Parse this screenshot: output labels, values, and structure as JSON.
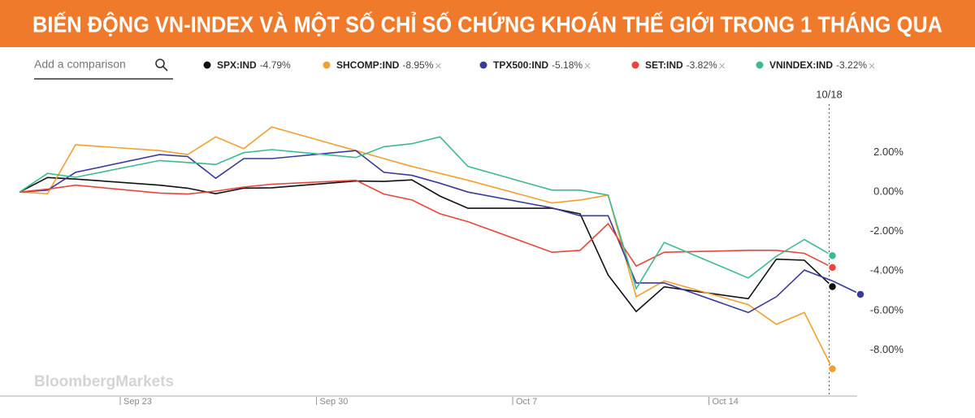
{
  "header": {
    "title": "BIẾN ĐỘNG VN-INDEX VÀ MỘT SỐ CHỈ SỐ CHỨNG KHOÁN THẾ GIỚI TRONG 1 THÁNG QUA"
  },
  "comparison_placeholder": "Add a comparison",
  "watermark": "BloombergMarkets",
  "chart_data": {
    "type": "line",
    "x": [
      "Sep 19",
      "Sep 20",
      "Sep 21",
      "Sep 24",
      "Sep 25",
      "Sep 26",
      "Sep 27",
      "Sep 28",
      "Oct 1",
      "Oct 2",
      "Oct 3",
      "Oct 4",
      "Oct 5",
      "Oct 8",
      "Oct 9",
      "Oct 10",
      "Oct 11",
      "Oct 12",
      "Oct 15",
      "Oct 16",
      "Oct 17",
      "Oct 18",
      "Oct 19"
    ],
    "xlim": [
      "Sep 19",
      "Oct 19"
    ],
    "xticks": [
      "Sep 23",
      "Sep 30",
      "Oct 7",
      "Oct 14"
    ],
    "ylim": [
      -10.25,
      5.2
    ],
    "yticks": [
      {
        "value": 2,
        "label": "2.00%"
      },
      {
        "value": 0,
        "label": "0.00%"
      },
      {
        "value": -2,
        "label": "-2.00%"
      },
      {
        "value": -4,
        "label": "-4.00%"
      },
      {
        "value": -6,
        "label": "-6.00%"
      },
      {
        "value": -8,
        "label": "-8.00%"
      }
    ],
    "grid": false,
    "cursor_label": "10/18",
    "series": [
      {
        "name": "SPX:IND",
        "change_label": "-4.79%",
        "color": "#111111",
        "removable": false,
        "values": [
          0,
          0.74,
          0.66,
          0.35,
          0.2,
          -0.08,
          0.2,
          0.22,
          0.56,
          0.54,
          0.62,
          -0.2,
          -0.82,
          -0.82,
          -1.1,
          -4.2,
          -6.05,
          -4.8,
          -5.4,
          -3.4,
          -3.45,
          -4.79,
          null
        ]
      },
      {
        "name": "SHCOMP:IND",
        "change_label": "-8.95%",
        "color": "#f0a030",
        "removable": true,
        "values": [
          0,
          -0.08,
          2.4,
          2.1,
          1.9,
          2.8,
          2.2,
          3.3,
          2.1,
          1.7,
          1.3,
          0.95,
          0.6,
          -0.55,
          -0.4,
          -0.15,
          -5.3,
          -4.5,
          -5.7,
          -6.7,
          -6.1,
          -8.95,
          null
        ]
      },
      {
        "name": "TPX500:IND",
        "change_label": "-5.18%",
        "color": "#3a3a9a",
        "removable": true,
        "values": [
          0,
          0.1,
          1.0,
          1.9,
          1.8,
          0.7,
          1.7,
          1.7,
          2.1,
          1.0,
          0.85,
          0.45,
          0.0,
          -0.8,
          -1.2,
          -1.2,
          -4.6,
          -4.6,
          -6.1,
          -5.3,
          -3.95,
          -4.5,
          -5.18
        ]
      },
      {
        "name": "SET:IND",
        "change_label": "-3.82%",
        "color": "#e8453c",
        "removable": true,
        "values": [
          0,
          0.15,
          0.35,
          -0.05,
          -0.1,
          0.05,
          0.25,
          0.4,
          0.6,
          -0.1,
          -0.4,
          -1.1,
          -1.5,
          -3.05,
          -2.95,
          -1.6,
          -3.75,
          -3.05,
          -2.95,
          -2.95,
          -3.1,
          -3.82,
          null
        ]
      },
      {
        "name": "VNINDEX:IND",
        "change_label": "-3.22%",
        "color": "#3dbb8e",
        "removable": true,
        "values": [
          0,
          0.95,
          0.75,
          1.6,
          1.5,
          1.4,
          2.0,
          2.15,
          1.75,
          2.3,
          2.45,
          2.8,
          1.3,
          0.1,
          0.1,
          -0.15,
          -4.9,
          -2.55,
          -4.35,
          -3.25,
          -2.4,
          -3.22,
          null
        ]
      }
    ]
  }
}
